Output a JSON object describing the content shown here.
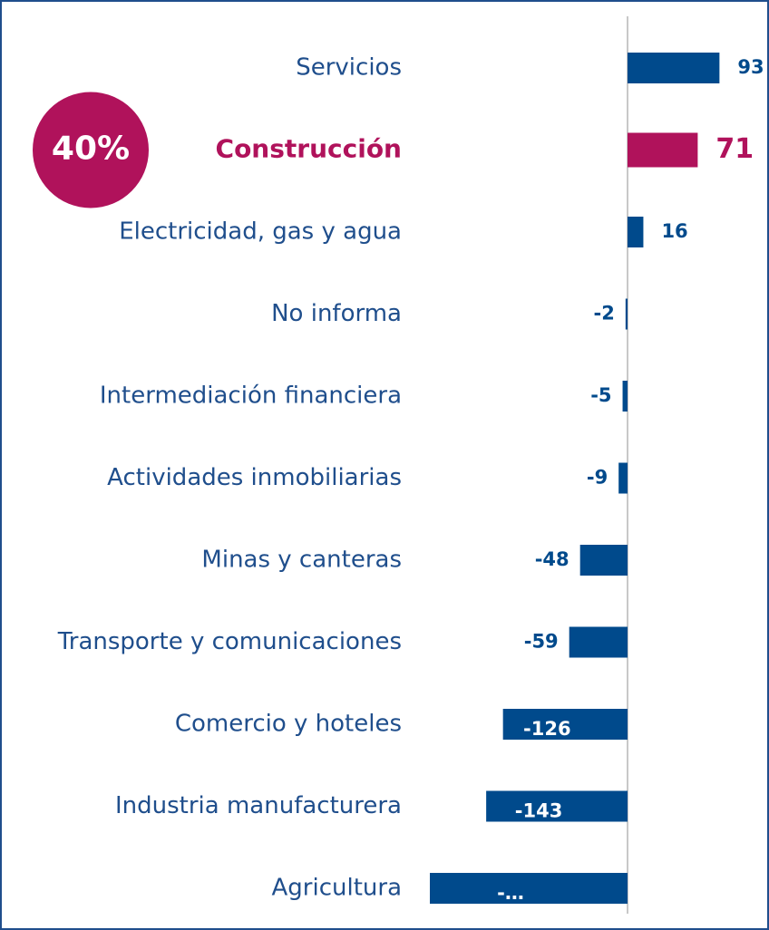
{
  "chart_data": {
    "type": "bar",
    "orientation": "horizontal",
    "categories": [
      "Servicios",
      "Construcción",
      "Electricidad, gas y agua",
      "No informa",
      "Intermediación financiera",
      "Actividades inmobiliarias",
      "Minas y canteras",
      "Transporte y comunicaciones",
      "Comercio y hoteles",
      "Industria manufacturera",
      "Agricultura"
    ],
    "values": [
      93,
      71,
      16,
      -2,
      -5,
      -9,
      -48,
      -59,
      -126,
      -143,
      -200
    ],
    "value_labels": [
      "93",
      "71",
      "16",
      "-2",
      "-5",
      "-9",
      "-48",
      "-59",
      "-126",
      "-143",
      "-…"
    ],
    "color": "#004a8c",
    "highlight": {
      "index": 1,
      "color": "#b0125b"
    },
    "xlim": [
      -200,
      100
    ],
    "annotation": "40%"
  }
}
